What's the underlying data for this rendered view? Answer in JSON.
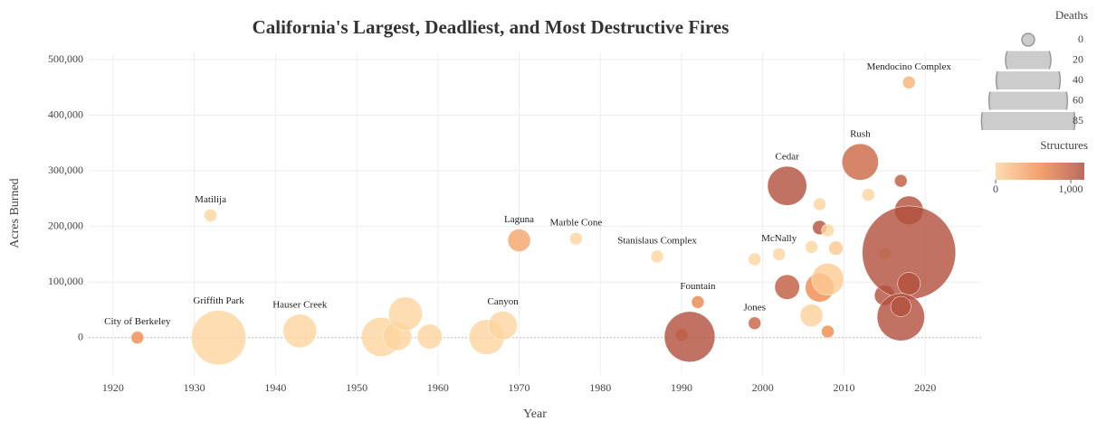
{
  "chart_data": {
    "type": "scatter",
    "title": "California's Largest, Deadliest, and Most Destructive Fires",
    "xlabel": "Year",
    "ylabel": "Acres Burned",
    "x": [
      1923,
      1932,
      1933,
      1943,
      1953,
      1955,
      1956,
      1959,
      1966,
      1968,
      1970,
      1977,
      1987,
      1990,
      1991,
      1992,
      1999,
      1999,
      2002,
      2003,
      2003,
      2006,
      2006,
      2007,
      2007,
      2007,
      2008,
      2008,
      2008,
      2009,
      2012,
      2013,
      2015,
      2015,
      2017,
      2018,
      2018,
      2018,
      2017,
      2017,
      2018
    ],
    "y": [
      130,
      220000,
      47,
      12000,
      1300,
      2500,
      43000,
      2000,
      1000,
      22000,
      175000,
      178000,
      146000,
      4900,
      1600,
      64000,
      26000,
      141000,
      150000,
      273000,
      91000,
      163000,
      40000,
      240000,
      198000,
      90000,
      193000,
      105000,
      11000,
      161000,
      316000,
      257000,
      76000,
      151000,
      282000,
      229000,
      153000,
      97000,
      37000,
      56000,
      459000
    ],
    "size": [
      0,
      0,
      29,
      11,
      15,
      8,
      11,
      6,
      12,
      8,
      5,
      0,
      1,
      1,
      25,
      0,
      1,
      0,
      0,
      15,
      6,
      0,
      5,
      0,
      2,
      8,
      0,
      10,
      0,
      2,
      13,
      0,
      4,
      0,
      0,
      8,
      85,
      5,
      22,
      4,
      1
    ],
    "color_values": [
      580,
      0,
      0,
      0,
      0,
      0,
      0,
      0,
      0,
      0,
      382,
      0,
      0,
      430,
      1100,
      640,
      950,
      0,
      0,
      1100,
      1000,
      0,
      30,
      0,
      1100,
      600,
      0,
      80,
      600,
      100,
      900,
      0,
      1100,
      0,
      1000,
      1100,
      1100,
      1100,
      1100,
      1100,
      280
    ],
    "labels": [
      "City of Berkeley",
      "Matilija",
      "Griffith Park",
      "Hauser Creek",
      null,
      null,
      null,
      null,
      null,
      "Canyon",
      "Laguna",
      "Marble Cone",
      "Stanislaus Complex",
      null,
      null,
      "Fountain",
      "Jones",
      null,
      "McNally",
      "Cedar",
      null,
      null,
      null,
      null,
      null,
      null,
      null,
      null,
      null,
      null,
      "Rush",
      null,
      null,
      null,
      null,
      null,
      null,
      null,
      null,
      null,
      "Mendocino Complex"
    ],
    "xlim": [
      1917,
      2027
    ],
    "ylim": [
      -67000,
      513000
    ],
    "xticks": [
      1920,
      1930,
      1940,
      1950,
      1960,
      1970,
      1980,
      1990,
      2000,
      2010,
      2020
    ],
    "yticks": [
      0,
      {
        "value": 100000,
        "label": "100,000"
      },
      {
        "value": 200000,
        "label": "200,000"
      },
      {
        "value": 300000,
        "label": "300,000"
      },
      {
        "value": 400000,
        "label": "400,000"
      },
      {
        "value": 500000,
        "label": "500,000"
      }
    ],
    "grid": true,
    "opacity": 0.8,
    "colorscale": [
      "#fdd49e",
      "#f08a4b",
      "#a9463a"
    ],
    "size_legend": {
      "title": "Deaths",
      "values": [
        0,
        20,
        40,
        60,
        85
      ]
    },
    "colorbar": {
      "title": "Structures",
      "range": [
        0,
        1180
      ],
      "ticks": [
        0,
        {
          "value": 1000,
          "label": "1,000"
        }
      ]
    }
  }
}
